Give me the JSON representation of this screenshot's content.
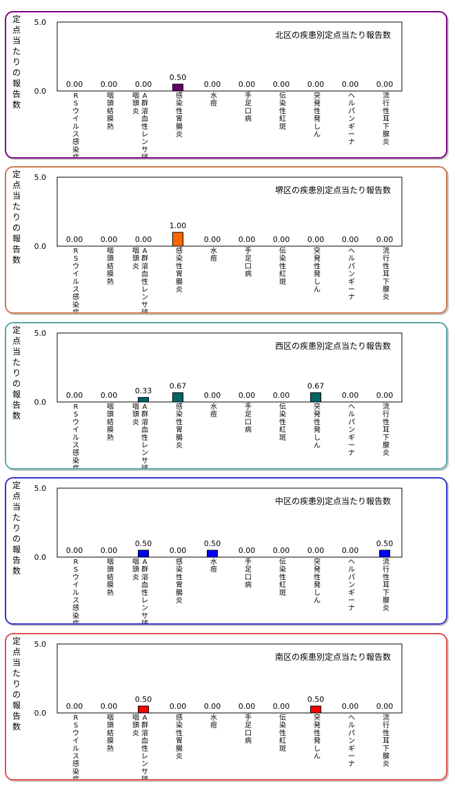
{
  "y_axis_label": "定点当たりの報告数",
  "chart_data": [
    {
      "type": "bar",
      "title": "北区の疾患別定点当たり報告数",
      "ylim": [
        0,
        5
      ],
      "yticks": [
        "0.0",
        "5.0"
      ],
      "color": "#660066",
      "categories": [
        "RSウイルス感染症",
        "咽頭結膜熱",
        "A群溶血性レンサ球菌咽頭炎",
        "感染性胃腸炎",
        "水痘",
        "手足口病",
        "伝染性紅斑",
        "突発性発しん",
        "ヘルパンギーナ",
        "流行性耳下腺炎"
      ],
      "values": [
        0,
        0,
        0,
        0.5,
        0,
        0,
        0,
        0,
        0,
        0
      ],
      "labels": [
        "0.00",
        "0.00",
        "0.00",
        "0.50",
        "0.00",
        "0.00",
        "0.00",
        "0.00",
        "0.00",
        "0.00"
      ]
    },
    {
      "type": "bar",
      "title": "堺区の疾患別定点当たり報告数",
      "ylim": [
        0,
        5
      ],
      "yticks": [
        "0.0",
        "5.0"
      ],
      "color": "#ff6600",
      "categories": [
        "RSウイルス感染症",
        "咽頭結膜熱",
        "A群溶血性レンサ球菌咽頭炎",
        "感染性胃腸炎",
        "水痘",
        "手足口病",
        "伝染性紅斑",
        "突発性発しん",
        "ヘルパンギーナ",
        "流行性耳下腺炎"
      ],
      "values": [
        0,
        0,
        0,
        1.0,
        0,
        0,
        0,
        0,
        0,
        0
      ],
      "labels": [
        "0.00",
        "0.00",
        "0.00",
        "1.00",
        "0.00",
        "0.00",
        "0.00",
        "0.00",
        "0.00",
        "0.00"
      ]
    },
    {
      "type": "bar",
      "title": "西区の疾患別定点当たり報告数",
      "ylim": [
        0,
        5
      ],
      "yticks": [
        "0.0",
        "5.0"
      ],
      "color": "#006666",
      "categories": [
        "RSウイルス感染症",
        "咽頭結膜熱",
        "A群溶血性レンサ球菌咽頭炎",
        "感染性胃腸炎",
        "水痘",
        "手足口病",
        "伝染性紅斑",
        "突発性発しん",
        "ヘルパンギーナ",
        "流行性耳下腺炎"
      ],
      "values": [
        0,
        0,
        0.33,
        0.67,
        0,
        0,
        0,
        0.67,
        0,
        0
      ],
      "labels": [
        "0.00",
        "0.00",
        "0.33",
        "0.67",
        "0.00",
        "0.00",
        "0.00",
        "0.67",
        "0.00",
        "0.00"
      ]
    },
    {
      "type": "bar",
      "title": "中区の疾患別定点当たり報告数",
      "ylim": [
        0,
        5
      ],
      "yticks": [
        "0.0",
        "5.0"
      ],
      "color": "#0000ff",
      "categories": [
        "RSウイルス感染症",
        "咽頭結膜熱",
        "A群溶血性レンサ球菌咽頭炎",
        "感染性胃腸炎",
        "水痘",
        "手足口病",
        "伝染性紅斑",
        "突発性発しん",
        "ヘルパンギーナ",
        "流行性耳下腺炎"
      ],
      "values": [
        0,
        0,
        0.5,
        0,
        0.5,
        0,
        0,
        0,
        0,
        0.5
      ],
      "labels": [
        "0.00",
        "0.00",
        "0.50",
        "0.00",
        "0.50",
        "0.00",
        "0.00",
        "0.00",
        "0.00",
        "0.50"
      ]
    },
    {
      "type": "bar",
      "title": "南区の疾患別定点当たり報告数",
      "ylim": [
        0,
        5
      ],
      "yticks": [
        "0.0",
        "5.0"
      ],
      "color": "#ff0000",
      "categories": [
        "RSウイルス感染症",
        "咽頭結膜熱",
        "A群溶血性レンサ球菌咽頭炎",
        "感染性胃腸炎",
        "水痘",
        "手足口病",
        "伝染性紅斑",
        "突発性発しん",
        "ヘルパンギーナ",
        "流行性耳下腺炎"
      ],
      "values": [
        0,
        0,
        0.5,
        0,
        0,
        0,
        0,
        0.5,
        0,
        0
      ],
      "labels": [
        "0.00",
        "0.00",
        "0.50",
        "0.00",
        "0.00",
        "0.00",
        "0.00",
        "0.50",
        "0.00",
        "0.00"
      ]
    }
  ],
  "panel_border_colors": [
    "#800080",
    "#cc7a4d",
    "#5aa6a6",
    "#3333cc",
    "#e05050"
  ]
}
